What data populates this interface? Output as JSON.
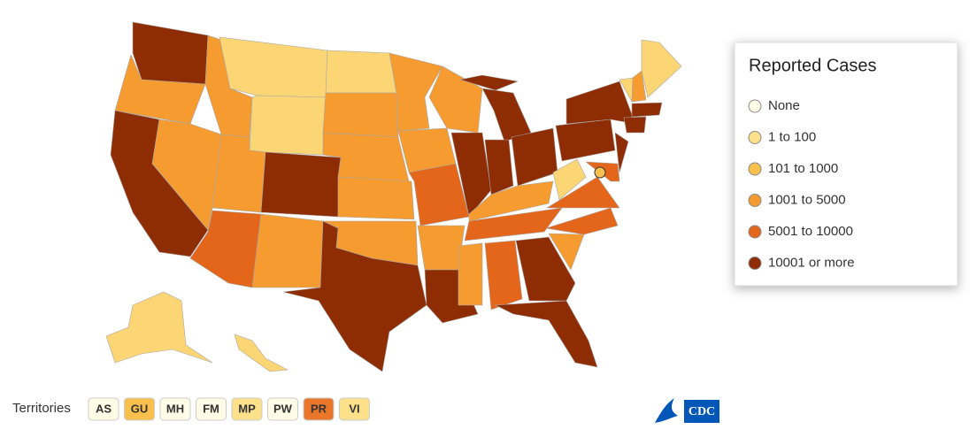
{
  "legend": {
    "title": "Reported Cases",
    "items": [
      {
        "label": "None",
        "color": "#fffbe6"
      },
      {
        "label": "1 to 100",
        "color": "#fde18a"
      },
      {
        "label": "101 to 1000",
        "color": "#f9c04d"
      },
      {
        "label": "1001 to 5000",
        "color": "#f59b30"
      },
      {
        "label": "5001 to 10000",
        "color": "#e4661b"
      },
      {
        "label": "10001 or more",
        "color": "#8e2d04"
      }
    ]
  },
  "territories": {
    "label": "Territories",
    "items": [
      {
        "label": "AS",
        "color": "#fffbe6"
      },
      {
        "label": "GU",
        "color": "#f9c04d"
      },
      {
        "label": "MH",
        "color": "#fffbe6"
      },
      {
        "label": "FM",
        "color": "#fffbe6"
      },
      {
        "label": "MP",
        "color": "#fde18a"
      },
      {
        "label": "PW",
        "color": "#fffbe6"
      },
      {
        "label": "PR",
        "color": "#e9762a"
      },
      {
        "label": "VI",
        "color": "#fde18a"
      }
    ]
  },
  "logo": "CDC"
}
